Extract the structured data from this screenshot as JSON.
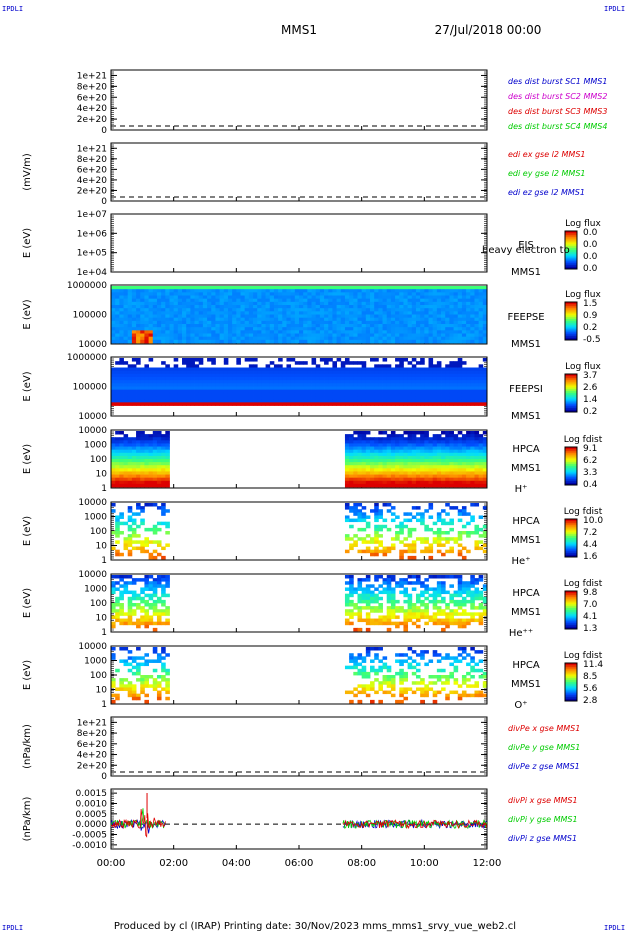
{
  "header": {
    "mission": "MMS1",
    "date": "27/Jul/2018 00:00"
  },
  "corners": {
    "tl": "IPDLI",
    "tr": "IPDLI",
    "bl": "IPDLI",
    "br": "IPDLI"
  },
  "footer": {
    "text": "Produced by cl (IRAP)   Printing date: 30/Nov/2023   mms_mms1_srvy_vue_web2.cl"
  },
  "colors": {
    "red": "#dd0000",
    "green": "#00cc00",
    "blue": "#0000cc",
    "magenta": "#cc00cc"
  },
  "chart_data": [
    {
      "type": "line",
      "name": "density",
      "ylabel": "",
      "yticks": [
        "1e+21",
        "8e+20",
        "6e+20",
        "4e+20",
        "2e+20",
        "0"
      ],
      "ylim": [
        0,
        1.1e+21
      ],
      "dashed_zero": true,
      "legend": [
        {
          "text": "des dist burst SC1 MMS1",
          "color": "#0000cc"
        },
        {
          "text": "des dist burst SC2 MMS2",
          "color": "#cc00cc"
        },
        {
          "text": "des dist burst SC3 MMS3",
          "color": "#dd0000"
        },
        {
          "text": "des dist burst SC4 MMS4",
          "color": "#00cc00"
        }
      ]
    },
    {
      "type": "line",
      "name": "edi",
      "ylabel": "(mV/m)",
      "yticks": [
        "1e+21",
        "8e+20",
        "6e+20",
        "4e+20",
        "2e+20",
        "0"
      ],
      "ylim": [
        0,
        1.1e+21
      ],
      "dashed_zero": true,
      "legend": [
        {
          "text": "edi ex gse l2 MMS1",
          "color": "#dd0000"
        },
        {
          "text": "edi ey gse l2 MMS1",
          "color": "#00cc00"
        },
        {
          "text": "edi ez gse l2 MMS1",
          "color": "#0000cc"
        }
      ]
    },
    {
      "type": "heatmap",
      "name": "eis",
      "ylabel": "E (eV)",
      "yticks": [
        "1e+07",
        "1e+06",
        "1e+05",
        "1e+04"
      ],
      "labels": [
        "EIS",
        "heavy electron to",
        "MMS1"
      ],
      "cbar": {
        "title": "Log flux",
        "ticks": [
          "0.0",
          "0.0",
          "0.0",
          "0.0"
        ]
      },
      "coverage": []
    },
    {
      "type": "heatmap",
      "name": "feeps_e",
      "ylabel": "E (eV)",
      "yticks": [
        "1000000",
        "100000",
        "10000"
      ],
      "labels": [
        "FEEPSE",
        "MMS1"
      ],
      "cbar": {
        "title": "Log flux",
        "ticks": [
          "1.5",
          "0.9",
          "0.2",
          "-0.5"
        ]
      },
      "coverage": [
        [
          0,
          12
        ]
      ]
    },
    {
      "type": "heatmap",
      "name": "feeps_i",
      "ylabel": "E (eV)",
      "yticks": [
        "1000000",
        "100000",
        "10000"
      ],
      "labels": [
        "FEEPSI",
        "MMS1"
      ],
      "cbar": {
        "title": "Log flux",
        "ticks": [
          "3.7",
          "2.6",
          "1.4",
          "0.2"
        ]
      },
      "coverage": [
        [
          0,
          12
        ]
      ]
    },
    {
      "type": "heatmap",
      "name": "hpca_h",
      "ylabel": "E (eV)",
      "yticks": [
        "10000",
        "1000",
        "100",
        "10",
        "1"
      ],
      "labels": [
        "HPCA",
        "MMS1",
        "H⁺"
      ],
      "cbar": {
        "title": "Log fdist",
        "ticks": [
          "9.1",
          "6.2",
          "3.3",
          "0.4"
        ]
      },
      "coverage": [
        [
          0,
          1.75
        ],
        [
          7.4,
          12
        ]
      ]
    },
    {
      "type": "heatmap",
      "name": "hpca_he",
      "ylabel": "E (eV)",
      "yticks": [
        "10000",
        "1000",
        "100",
        "10",
        "1"
      ],
      "labels": [
        "HPCA",
        "MMS1",
        "He⁺"
      ],
      "cbar": {
        "title": "Log fdist",
        "ticks": [
          "10.0",
          "7.2",
          "4.4",
          "1.6"
        ]
      },
      "coverage": [
        [
          0,
          1.75
        ],
        [
          7.4,
          12
        ]
      ]
    },
    {
      "type": "heatmap",
      "name": "hpca_hepp",
      "ylabel": "E (eV)",
      "yticks": [
        "10000",
        "1000",
        "100",
        "10",
        "1"
      ],
      "labels": [
        "HPCA",
        "MMS1",
        "He⁺⁺"
      ],
      "cbar": {
        "title": "Log fdist",
        "ticks": [
          "9.8",
          "7.0",
          "4.1",
          "1.3"
        ]
      },
      "coverage": [
        [
          0,
          1.75
        ],
        [
          7.4,
          12
        ]
      ]
    },
    {
      "type": "heatmap",
      "name": "hpca_o",
      "ylabel": "E (eV)",
      "yticks": [
        "10000",
        "1000",
        "100",
        "10",
        "1"
      ],
      "labels": [
        "HPCA",
        "MMS1",
        "O⁺"
      ],
      "cbar": {
        "title": "Log fdist",
        "ticks": [
          "11.4",
          "8.5",
          "5.6",
          "2.8"
        ]
      },
      "coverage": [
        [
          0,
          1.75
        ],
        [
          7.4,
          12
        ]
      ]
    },
    {
      "type": "line",
      "name": "divpe",
      "ylabel": "(nPa/km)",
      "yticks": [
        "1e+21",
        "8e+20",
        "6e+20",
        "4e+20",
        "2e+20",
        "0"
      ],
      "ylim": [
        0,
        1.1e+21
      ],
      "dashed_zero": true,
      "legend": [
        {
          "text": "divPe x gse MMS1",
          "color": "#dd0000"
        },
        {
          "text": "divPe y gse MMS1",
          "color": "#00cc00"
        },
        {
          "text": "divPe z gse MMS1",
          "color": "#0000cc"
        }
      ]
    },
    {
      "type": "line",
      "name": "divpi",
      "ylabel": "(nPa/km)",
      "yticks": [
        "0.0015",
        "0.0010",
        "0.0005",
        "0.0000",
        "-0.0005",
        "-0.0010"
      ],
      "ylim": [
        -0.0012,
        0.0017
      ],
      "dashed_zero": true,
      "legend": [
        {
          "text": "divPi x gse MMS1",
          "color": "#dd0000"
        },
        {
          "text": "divPi y gse MMS1",
          "color": "#00cc00"
        },
        {
          "text": "divPi z gse MMS1",
          "color": "#0000cc"
        }
      ],
      "coverage": [
        [
          0,
          1.75
        ],
        [
          7.4,
          12
        ]
      ]
    }
  ],
  "xaxis": {
    "ticks": [
      "00:00",
      "02:00",
      "04:00",
      "06:00",
      "08:00",
      "10:00",
      "12:00"
    ],
    "range_hours": [
      0,
      12
    ]
  }
}
